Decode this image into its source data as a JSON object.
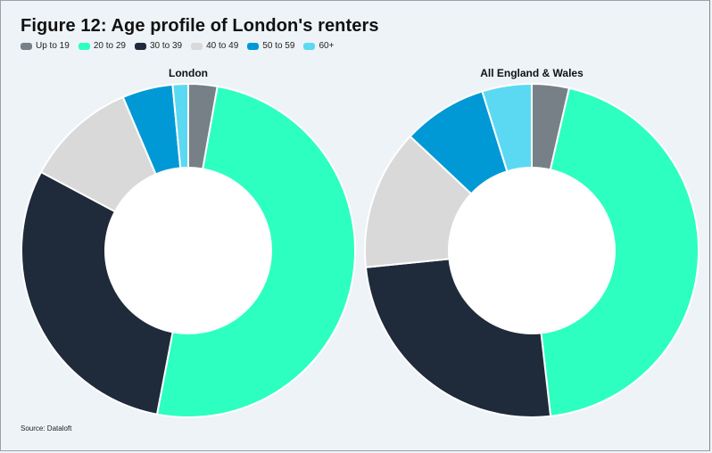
{
  "title": "Figure 12: Age profile of London's renters",
  "source": "Source: Dataloft",
  "legend": [
    {
      "label": "Up to 19",
      "color": "#778087"
    },
    {
      "label": "20 to 29",
      "color": "#2dffc0"
    },
    {
      "label": "30 to 39",
      "color": "#1f2a3a"
    },
    {
      "label": "40 to 49",
      "color": "#d9d9d9"
    },
    {
      "label": "50 to 59",
      "color": "#0099d6"
    },
    {
      "label": "60+",
      "color": "#5cd9f2"
    }
  ],
  "chart_data": [
    {
      "type": "pie",
      "donut": true,
      "title": "London",
      "categories": [
        "Up to 19",
        "20 to 29",
        "30 to 39",
        "40 to 49",
        "50 to 59",
        "60+"
      ],
      "values": [
        2.8,
        50.2,
        29.8,
        10.8,
        4.9,
        1.5
      ]
    },
    {
      "type": "pie",
      "donut": true,
      "title": "All England & Wales",
      "categories": [
        "Up to 19",
        "20 to 29",
        "30 to 39",
        "40 to 49",
        "50 to 59",
        "60+"
      ],
      "values": [
        3.6,
        44.6,
        25.2,
        13.6,
        8.2,
        4.8
      ]
    }
  ]
}
